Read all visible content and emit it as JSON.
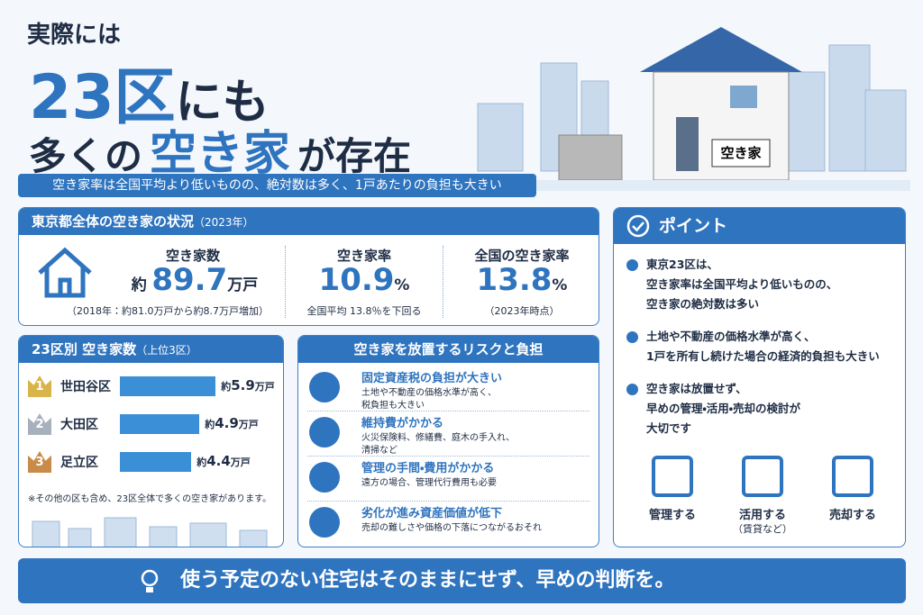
{
  "hero": {
    "lead": "実際には",
    "line1_a": "23区",
    "line1_b": "にも",
    "line2_a": "多くの",
    "line2_b": "空き家",
    "line2_c": "が存在",
    "subtitle": "空き家率は全国平均より低いものの、絶対数は多く、1戸あたりの負担も大きい",
    "sign": "空き家"
  },
  "status": {
    "title": "東京都全体の空き家の状況",
    "year": "（2023年）",
    "stats": [
      {
        "label": "空き家数",
        "prefix": "約",
        "value": 89.7,
        "unit": "万戸",
        "note": "（2018年：約81.0万戸から約8.7万戸増加）"
      },
      {
        "label": "空き家率",
        "value": 10.9,
        "unit": "%",
        "note": "全国平均 13.8％を下回る"
      },
      {
        "label": "全国の空き家率",
        "value": 13.8,
        "unit": "%",
        "note": "（2023年時点）"
      }
    ]
  },
  "wards": {
    "title": "23区別  空き家数",
    "sub": "（上位3区）",
    "items": [
      {
        "rank": 1,
        "name": "世田谷区",
        "prefix": "約",
        "value": 5.9,
        "unit": "万戸"
      },
      {
        "rank": 2,
        "name": "大田区",
        "prefix": "約",
        "value": 4.9,
        "unit": "万戸"
      },
      {
        "rank": 3,
        "name": "足立区",
        "prefix": "約",
        "value": 4.4,
        "unit": "万戸"
      }
    ],
    "footnote": "※その他の区も含め、23区全体で多くの空き家があります。"
  },
  "risks": {
    "title": "空き家を放置するリスクと負担",
    "items": [
      {
        "title": "固定資産税の負担が大きい",
        "lines": [
          "土地や不動産の価格水準が高く、",
          "税負担も大きい"
        ]
      },
      {
        "title": "維持費がかかる",
        "lines": [
          "火災保険料、修繕費、庭木の手入れ、",
          "清掃など"
        ]
      },
      {
        "title": "管理の手間・費用がかかる",
        "lines": [
          "遠方の場合、管理代行費用も必要"
        ]
      },
      {
        "title": "劣化が進み資産価値が低下",
        "lines": [
          "売却の難しさや価格の下落につながるおそれ"
        ]
      }
    ]
  },
  "points": {
    "title": "ポイント",
    "items": [
      [
        "東京23区は、",
        "空き家率は全国平均より低いものの、",
        "空き家の絶対数は多い"
      ],
      [
        "土地や不動産の価格水準が高く、",
        "1戸を所有し続けた場合の経済的負担も大きい"
      ],
      [
        "空き家は放置せず、",
        "早めの管理・活用・売却の検討が",
        "大切です"
      ]
    ],
    "actions": [
      "管理する",
      "活用する",
      "売却する"
    ],
    "action_note": "（賃貸など）"
  },
  "footer": "使う予定のない住宅はそのままにせず、早めの判断を。"
}
